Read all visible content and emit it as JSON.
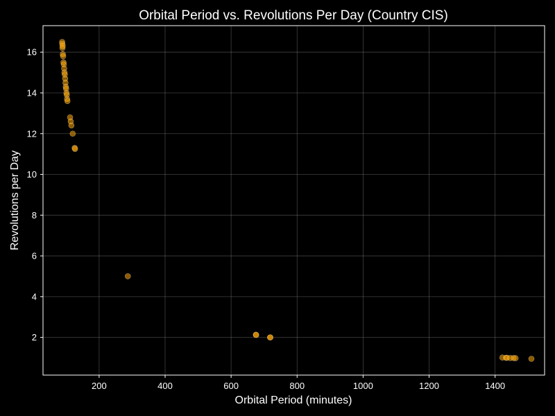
{
  "chart_data": {
    "type": "scatter",
    "title": "Orbital Period vs. Revolutions Per Day (Country CIS)",
    "xlabel": "Orbital Period (minutes)",
    "ylabel": "Revolutions per Day",
    "xlim": [
      30,
      1550
    ],
    "ylim": [
      0.15,
      17.3
    ],
    "xticks": [
      200,
      400,
      600,
      800,
      1000,
      1200,
      1400
    ],
    "yticks": [
      2,
      4,
      6,
      8,
      10,
      12,
      14,
      16
    ],
    "grid": true,
    "background_color": "#000000",
    "text_color": "#ffffff",
    "point_color": "#ffa500",
    "point_edge_color": "#ffe4b0",
    "points": [
      {
        "x": 88.0,
        "y": 16.5
      },
      {
        "x": 88.5,
        "y": 16.4
      },
      {
        "x": 89.0,
        "y": 16.2
      },
      {
        "x": 89.5,
        "y": 16.3
      },
      {
        "x": 90.0,
        "y": 15.9
      },
      {
        "x": 91.0,
        "y": 15.8
      },
      {
        "x": 92.0,
        "y": 15.5
      },
      {
        "x": 93.0,
        "y": 15.4
      },
      {
        "x": 94.0,
        "y": 15.2
      },
      {
        "x": 95.0,
        "y": 15.0
      },
      {
        "x": 96.0,
        "y": 14.9
      },
      {
        "x": 97.0,
        "y": 14.7
      },
      {
        "x": 98.0,
        "y": 14.5
      },
      {
        "x": 99.0,
        "y": 14.3
      },
      {
        "x": 100.0,
        "y": 14.2
      },
      {
        "x": 101.0,
        "y": 14.0
      },
      {
        "x": 102.0,
        "y": 13.9
      },
      {
        "x": 103.0,
        "y": 13.7
      },
      {
        "x": 104.0,
        "y": 13.6
      },
      {
        "x": 112.0,
        "y": 12.8
      },
      {
        "x": 114.0,
        "y": 12.6
      },
      {
        "x": 116.0,
        "y": 12.4
      },
      {
        "x": 120.0,
        "y": 12.0
      },
      {
        "x": 126.0,
        "y": 11.3
      },
      {
        "x": 127.0,
        "y": 11.25
      },
      {
        "x": 287.0,
        "y": 5.0
      },
      {
        "x": 675.0,
        "y": 2.13
      },
      {
        "x": 676.0,
        "y": 2.12
      },
      {
        "x": 718.0,
        "y": 2.0
      },
      {
        "x": 719.0,
        "y": 2.0
      },
      {
        "x": 1422.0,
        "y": 1.01
      },
      {
        "x": 1433.0,
        "y": 1.0
      },
      {
        "x": 1436.0,
        "y": 1.0
      },
      {
        "x": 1446.0,
        "y": 0.99
      },
      {
        "x": 1456.0,
        "y": 0.99
      },
      {
        "x": 1462.0,
        "y": 0.98
      },
      {
        "x": 1510.0,
        "y": 0.95
      }
    ]
  }
}
